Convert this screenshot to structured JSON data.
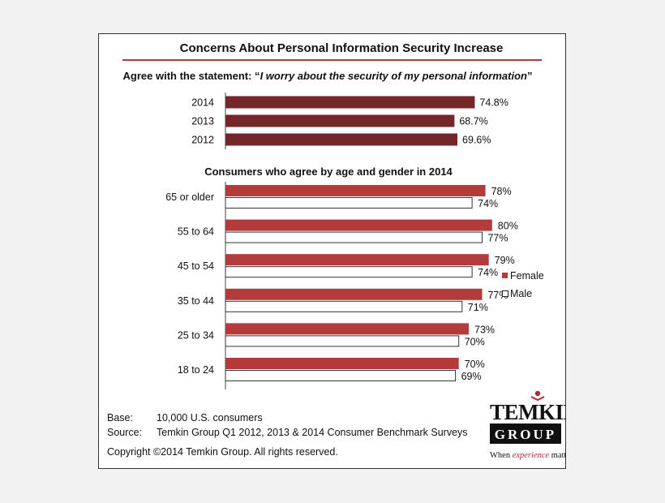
{
  "colors": {
    "year_bar": "#74262a",
    "female_bar": "#b33b3b",
    "male_bar": "#ffffff",
    "rule": "#b33b3b",
    "logo_red": "#b2292e"
  },
  "header": {
    "title": "Concerns About Personal Information Security Increase",
    "statement_prefix": "Agree with the statement: “",
    "statement_quote": "I worry about the security of my personal information",
    "statement_suffix": "”",
    "age_gender_title": "Consumers who agree by age and gender in 2014"
  },
  "chart_data": [
    {
      "type": "bar",
      "orientation": "horizontal",
      "categories": [
        "2014",
        "2013",
        "2012"
      ],
      "values": [
        74.8,
        68.7,
        69.6
      ],
      "labels": [
        "74.8%",
        "68.7%",
        "69.6%"
      ],
      "xlim": [
        0,
        100
      ]
    },
    {
      "type": "bar",
      "orientation": "horizontal",
      "title": "Consumers who agree by age and gender in 2014",
      "categories": [
        "65 or older",
        "55 to 64",
        "45 to 54",
        "35 to 44",
        "25 to 34",
        "18 to 24"
      ],
      "series": [
        {
          "name": "Female",
          "values": [
            78,
            80,
            79,
            77,
            73,
            70
          ],
          "labels": [
            "78%",
            "80%",
            "79%",
            "77%",
            "73%",
            "70%"
          ]
        },
        {
          "name": "Male",
          "values": [
            74,
            77,
            74,
            71,
            70,
            69
          ],
          "labels": [
            "74%",
            "77%",
            "74%",
            "71%",
            "70%",
            "69%"
          ]
        }
      ],
      "xlim": [
        0,
        100
      ],
      "legend_position": "right"
    }
  ],
  "footer": {
    "base_label": "Base:",
    "base_value": "10,000 U.S. consumers",
    "source_label": "Source:",
    "source_value": "Temkin Group Q1 2012, 2013 & 2014 Consumer Benchmark Surveys",
    "copyright": "Copyright ©2014 Temkin Group. All rights reserved."
  },
  "logo": {
    "wordmark": "TEMKIN",
    "group": "GROUP",
    "tagline_before": "When ",
    "tagline_emphasis": "experience",
    "tagline_after": " matters"
  }
}
